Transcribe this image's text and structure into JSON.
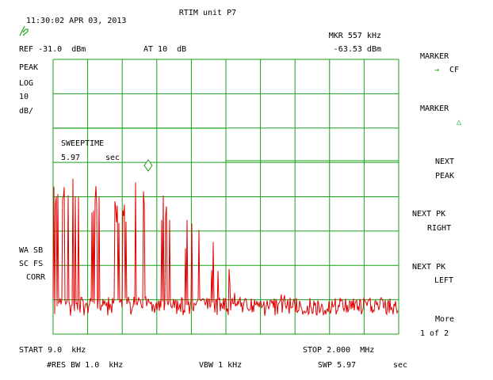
{
  "header": {
    "timestamp": "11:30:02 APR 03, 2013",
    "title": "RTIM unit P7",
    "marker_readout": "MKR 557 kHz",
    "reference": "REF -31.0  dBm",
    "attenuation": "AT 10  dB",
    "marker_level": "-63.53 dBm"
  },
  "left_annotations": {
    "detector": "PEAK",
    "scale": "LOG",
    "scale_value": "10",
    "scale_unit": "dB/",
    "wa_sb": "WA SB",
    "sc_fs": "SC FS",
    "corr": "CORR"
  },
  "sweep_box": {
    "label": "SWEEPTIME",
    "value": "5.97",
    "unit": "sec"
  },
  "footer": {
    "start": "START 9.0  kHz",
    "stop": "STOP 2.000  MHz",
    "res_bw": "#RES BW 1.0  kHz",
    "vbw": "VBW 1 kHz",
    "swp": "SWP 5.97",
    "swp_unit": "sec"
  },
  "softkeys": {
    "marker_cf_title": "MARKER",
    "marker_cf_arrow": "→",
    "marker_cf_value": "CF",
    "marker_delta_title": "MARKER",
    "marker_delta_symbol": "△",
    "next_peak_1": "NEXT",
    "next_peak_2": "PEAK",
    "next_pk_right_1": "NEXT PK",
    "next_pk_right_2": "RIGHT",
    "next_pk_left_1": "NEXT PK",
    "next_pk_left_2": "LEFT",
    "more_1": "More",
    "more_2": "1 of 2"
  },
  "colors": {
    "grid": "#18a018",
    "trace": "#e00000",
    "text": "#000000",
    "background": "#ffffff"
  },
  "icons": {
    "logo": "hp-logo-icon",
    "marker": "diamond-marker-icon"
  }
}
